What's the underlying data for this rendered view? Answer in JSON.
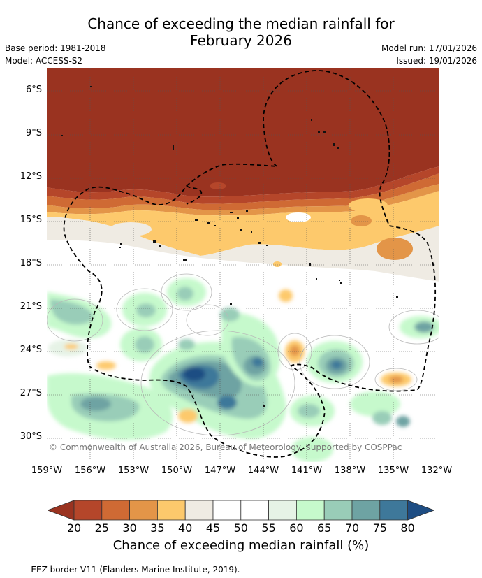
{
  "title_line1": "Chance of exceeding the median rainfall for",
  "title_line2": "February 2026",
  "base_period": "Base period: 1981-2018",
  "model": "Model: ACCESS-S2",
  "model_run": "Model run: 17/01/2026",
  "issued": "Issued: 19/01/2026",
  "copyright": "© Commonwealth of Australia 2026, Bureau of Meteorology, supported by COSPPac",
  "lat_labels": [
    "6°S",
    "9°S",
    "12°S",
    "15°S",
    "18°S",
    "21°S",
    "24°S",
    "27°S",
    "30°S"
  ],
  "lon_labels": [
    "159°W",
    "156°W",
    "153°W",
    "150°W",
    "147°W",
    "144°W",
    "141°W",
    "138°W",
    "135°W",
    "132°W"
  ],
  "colorbar": {
    "ticks": [
      "20",
      "25",
      "30",
      "35",
      "40",
      "45",
      "50",
      "55",
      "60",
      "65",
      "70",
      "75",
      "80"
    ],
    "colors": [
      "#9a3320",
      "#b5462a",
      "#cf6a34",
      "#e39548",
      "#fdc96c",
      "#efebe3",
      "#ffffff",
      "#ffffff",
      "#e6f3e6",
      "#c6f9cc",
      "#99cdb8",
      "#6ea3a3",
      "#3e789a",
      "#1e4d83"
    ],
    "label": "Chance of exceeding median rainfall (%)"
  },
  "footnote": "-- -- -- EEZ border V11 (Flanders Marine Institute, 2019)."
}
